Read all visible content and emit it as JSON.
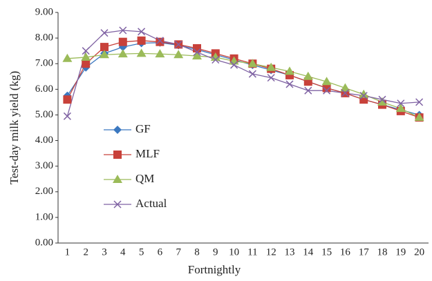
{
  "chart_data": {
    "type": "line",
    "y_label": "Test-day milk yield (kg)",
    "x_label": "Fortnightly",
    "categories": [
      "1",
      "2",
      "3",
      "4",
      "5",
      "6",
      "7",
      "8",
      "9",
      "10",
      "11",
      "12",
      "13",
      "14",
      "15",
      "16",
      "17",
      "18",
      "19",
      "20"
    ],
    "series": [
      {
        "name": "GF",
        "color": "#3b78c0",
        "marker": "diamond",
        "values": [
          5.75,
          6.85,
          7.4,
          7.65,
          7.8,
          7.82,
          7.72,
          7.55,
          7.35,
          7.15,
          6.95,
          6.75,
          6.55,
          6.3,
          6.05,
          5.85,
          5.6,
          5.4,
          5.2,
          5.0
        ]
      },
      {
        "name": "MLF",
        "color": "#c8413a",
        "marker": "square",
        "values": [
          5.6,
          7.0,
          7.65,
          7.85,
          7.9,
          7.85,
          7.75,
          7.6,
          7.4,
          7.2,
          7.0,
          6.8,
          6.55,
          6.3,
          6.05,
          5.85,
          5.6,
          5.4,
          5.15,
          4.9
        ]
      },
      {
        "name": "QM",
        "color": "#9bbb59",
        "marker": "triangle",
        "values": [
          7.2,
          7.25,
          7.35,
          7.38,
          7.4,
          7.38,
          7.35,
          7.3,
          7.25,
          7.1,
          7.0,
          6.85,
          6.7,
          6.5,
          6.3,
          6.05,
          5.8,
          5.5,
          5.25,
          4.9
        ]
      },
      {
        "name": "Actual",
        "color": "#7f62a3",
        "marker": "cross",
        "values": [
          4.95,
          7.5,
          8.2,
          8.3,
          8.25,
          7.9,
          7.75,
          7.45,
          7.15,
          6.95,
          6.6,
          6.45,
          6.2,
          5.95,
          5.95,
          5.85,
          5.75,
          5.6,
          5.45,
          5.5
        ]
      }
    ],
    "ylim": [
      0,
      9
    ],
    "yticks": [
      {
        "value": 0,
        "label": "0.00"
      },
      {
        "value": 1,
        "label": "1.00"
      },
      {
        "value": 2,
        "label": "2.00"
      },
      {
        "value": 3,
        "label": "3.00"
      },
      {
        "value": 4,
        "label": "4.00"
      },
      {
        "value": 5,
        "label": "5.00"
      },
      {
        "value": 6,
        "label": "6.00"
      },
      {
        "value": 7,
        "label": "7.00"
      },
      {
        "value": 8,
        "label": "8.00"
      },
      {
        "value": 9,
        "label": "9.00"
      }
    ],
    "grid": false,
    "legend": "center-left"
  }
}
